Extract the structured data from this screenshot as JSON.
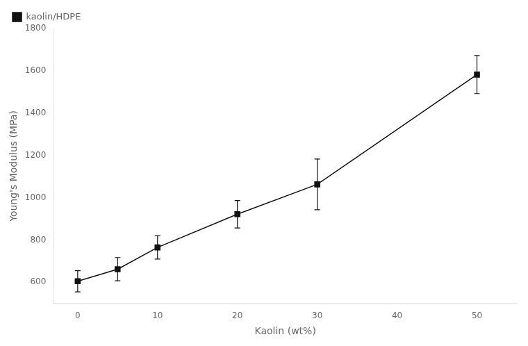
{
  "chart_data": {
    "type": "line",
    "xlabel": "Kaolin (wt%)",
    "ylabel": "Young's Modulus (MPa)",
    "x": [
      0,
      5,
      10,
      20,
      30,
      50
    ],
    "series": [
      {
        "name": "kaolin/HDPE",
        "color": "#111111",
        "marker": "square",
        "line_style": "solid",
        "values": [
          605,
          662,
          765,
          922,
          1063,
          1582
        ],
        "yerr": [
          50,
          55,
          55,
          65,
          120,
          90
        ]
      }
    ],
    "xlim": [
      -3,
      55
    ],
    "ylim": [
      500,
      1800
    ],
    "xticks": [
      0,
      10,
      20,
      30,
      40,
      50
    ],
    "yticks": [
      600,
      800,
      1000,
      1200,
      1400,
      1600,
      1800
    ],
    "grid": false,
    "legend": "upper left"
  }
}
